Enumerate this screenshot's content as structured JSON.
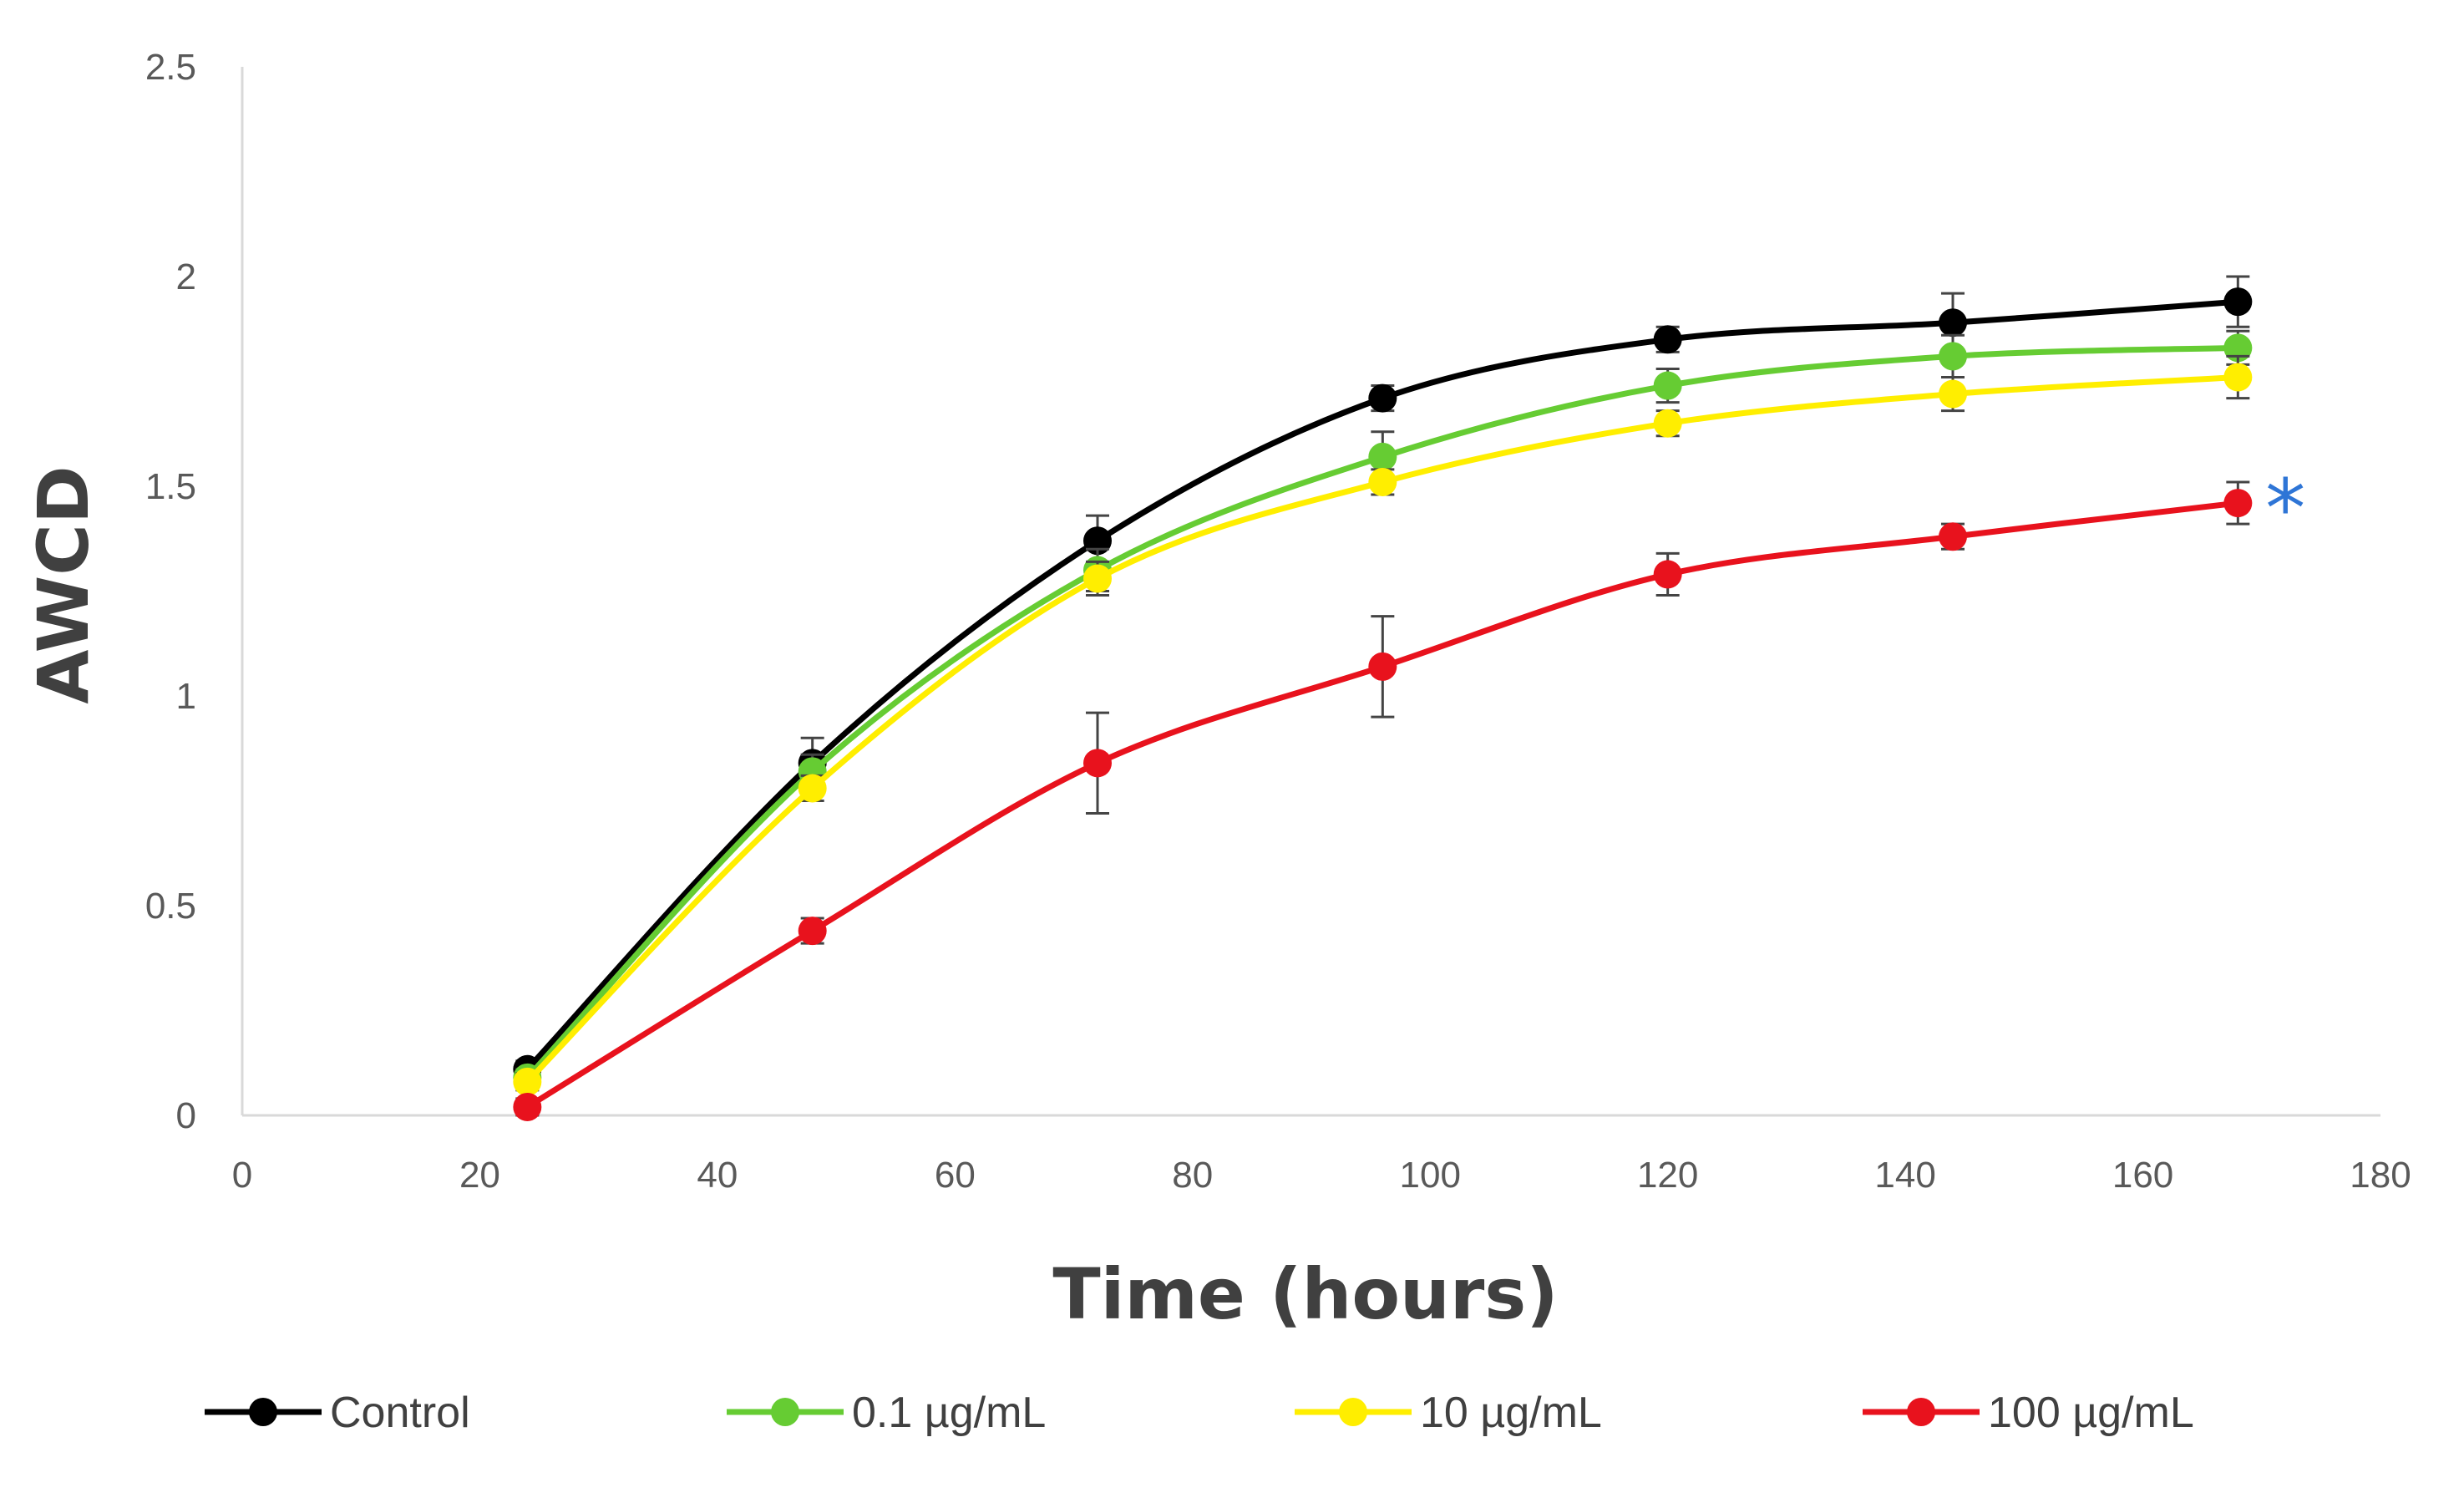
{
  "chart_data": {
    "type": "line",
    "title": "",
    "xlabel": "Time (hours)",
    "ylabel": "AWCD",
    "xlim": [
      0,
      180
    ],
    "ylim": [
      0,
      2.5
    ],
    "xticks": [
      0,
      20,
      40,
      60,
      80,
      100,
      120,
      140,
      160,
      180
    ],
    "yticks": [
      0,
      0.5,
      1,
      1.5,
      2,
      2.5
    ],
    "xtick_labels": [
      "0",
      "20",
      "40",
      "60",
      "80",
      "100",
      "120",
      "140",
      "160",
      "180"
    ],
    "ytick_labels": [
      "0",
      "0.5",
      "1",
      "1.5",
      "2",
      "2.5"
    ],
    "grid": false,
    "legend_position": "bottom",
    "x": [
      24,
      48,
      72,
      96,
      120,
      144,
      168
    ],
    "series": [
      {
        "name": "Control",
        "color": "#000000",
        "values": [
          0.11,
          0.84,
          1.37,
          1.71,
          1.85,
          1.89,
          1.94
        ],
        "errors": [
          0.02,
          0.06,
          0.06,
          0.03,
          0.03,
          0.07,
          0.06
        ]
      },
      {
        "name": "0.1 µg/mL",
        "color": "#66CC33",
        "values": [
          0.09,
          0.82,
          1.3,
          1.57,
          1.74,
          1.81,
          1.83
        ],
        "errors": [
          0.02,
          0.04,
          0.05,
          0.06,
          0.04,
          0.05,
          0.04
        ]
      },
      {
        "name": "10 µg/mL",
        "color": "#FFEE00",
        "values": [
          0.08,
          0.78,
          1.28,
          1.51,
          1.65,
          1.72,
          1.76
        ],
        "errors": [
          0.02,
          0.03,
          0.04,
          0.03,
          0.03,
          0.04,
          0.05
        ]
      },
      {
        "name": "100 µg/mL",
        "color": "#E8121D",
        "values": [
          0.02,
          0.44,
          0.84,
          1.07,
          1.29,
          1.38,
          1.46
        ],
        "errors": [
          0.02,
          0.03,
          0.12,
          0.12,
          0.05,
          0.03,
          0.05
        ]
      }
    ],
    "annotations": [
      {
        "text": "*",
        "x": 172,
        "y": 1.52,
        "color": "#2E75D6"
      }
    ]
  }
}
